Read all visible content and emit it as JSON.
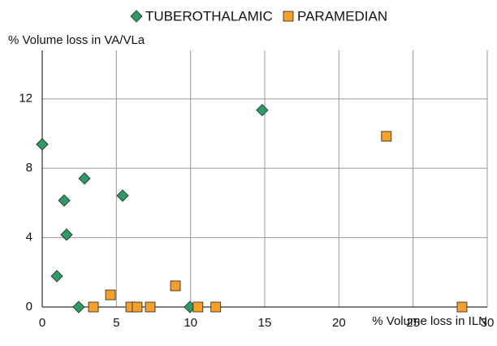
{
  "chart_data": {
    "type": "scatter",
    "xlabel": "% Volume loss in ILN",
    "ylabel": "% Volume loss in VA/VLa",
    "xlim": [
      0,
      30
    ],
    "ylim": [
      0,
      14
    ],
    "xticks": [
      0,
      5,
      10,
      15,
      20,
      25,
      30
    ],
    "yticks": [
      0,
      4,
      8,
      12
    ],
    "grid": true,
    "legend": "top",
    "series": [
      {
        "name": "TUBEROTHALAMIC",
        "color": "#2e9a66",
        "marker": "diamond",
        "x": [
          0,
          0.99,
          1.48,
          1.64,
          2.46,
          2.85,
          5.42,
          9.96,
          14.83
        ],
        "values": [
          9.38,
          1.78,
          6.14,
          4.17,
          0,
          7.41,
          6.42,
          0,
          11.35
        ]
      },
      {
        "name": "PARAMEDIAN",
        "color": "#f5a02a",
        "marker": "square",
        "x": [
          3.45,
          4.6,
          5.97,
          6.4,
          7.28,
          8.98,
          10.5,
          11.7,
          23.2,
          28.3
        ],
        "values": [
          0,
          0.7,
          0,
          0,
          0,
          1.22,
          0,
          0,
          9.84,
          0
        ]
      }
    ]
  }
}
